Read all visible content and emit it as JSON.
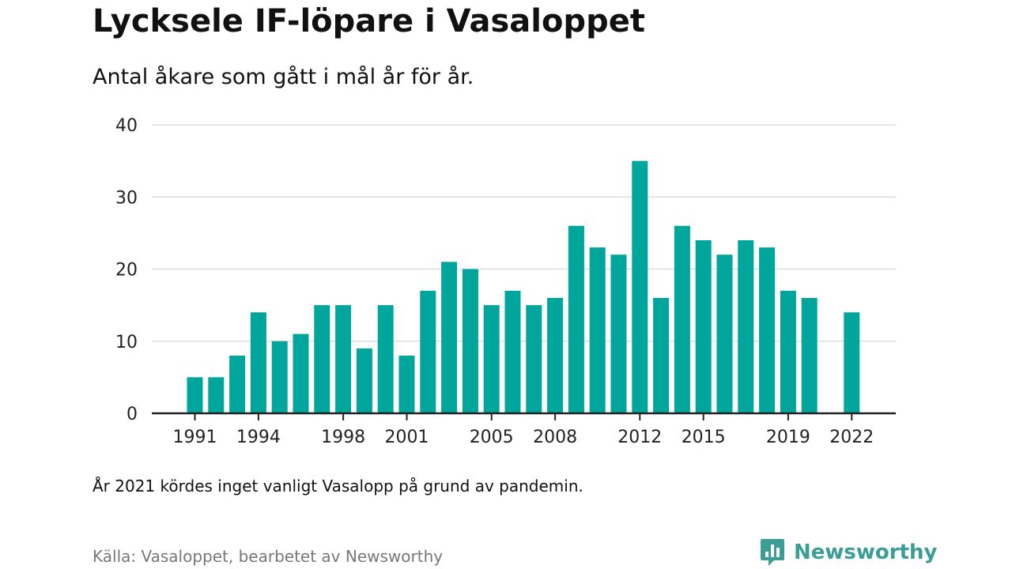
{
  "header": {
    "title": "Lycksele IF-löpare i Vasaloppet",
    "subtitle": "Antal åkare som gått i mål år för år."
  },
  "footer": {
    "note": "År 2021 kördes inget vanligt Vasalopp på grund av pandemin.",
    "source": "Källa: Vasaloppet, bearbetet av Newsworthy",
    "brand": "Newsworthy"
  },
  "colors": {
    "bar": "#00a59b",
    "grid": "#dddddd",
    "axis": "#222222",
    "brand": "#3a9e96"
  },
  "chart_data": {
    "type": "bar",
    "x": [
      1991,
      1992,
      1993,
      1994,
      1995,
      1996,
      1997,
      1998,
      1999,
      2000,
      2001,
      2002,
      2003,
      2004,
      2005,
      2006,
      2007,
      2008,
      2009,
      2010,
      2011,
      2012,
      2013,
      2014,
      2015,
      2016,
      2017,
      2018,
      2019,
      2020,
      2021,
      2022
    ],
    "values": [
      5,
      5,
      8,
      14,
      10,
      11,
      15,
      15,
      9,
      15,
      8,
      17,
      21,
      20,
      15,
      17,
      15,
      16,
      26,
      23,
      22,
      35,
      16,
      26,
      24,
      22,
      24,
      23,
      17,
      16,
      null,
      14
    ],
    "xticks": [
      1991,
      1994,
      1998,
      2001,
      2005,
      2008,
      2012,
      2015,
      2019,
      2022
    ],
    "yticks": [
      0,
      10,
      20,
      30,
      40
    ],
    "ylim": [
      0,
      40
    ],
    "grid": true
  }
}
